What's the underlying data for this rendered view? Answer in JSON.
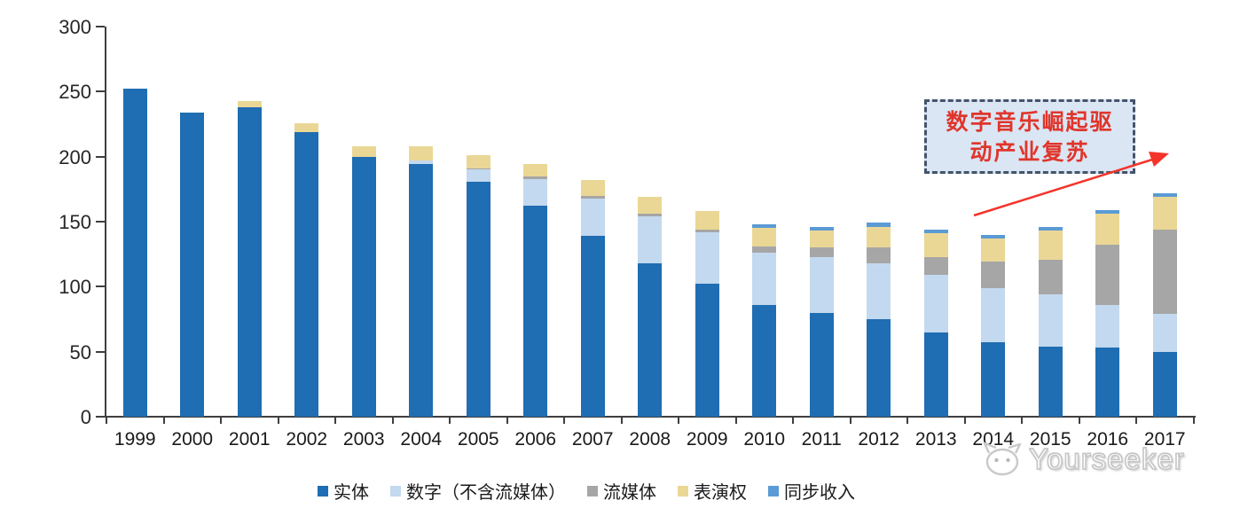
{
  "chart_data": {
    "type": "bar",
    "stacked": true,
    "title": "",
    "categories": [
      "1999",
      "2000",
      "2001",
      "2002",
      "2003",
      "2004",
      "2005",
      "2006",
      "2007",
      "2008",
      "2009",
      "2010",
      "2011",
      "2012",
      "2013",
      "2014",
      "2015",
      "2016",
      "2017"
    ],
    "series": [
      {
        "key": "physical",
        "name": "实体",
        "color": "#1F6DB2",
        "values": [
          252,
          234,
          238,
          219,
          200,
          194,
          181,
          162,
          139,
          118,
          102,
          86,
          80,
          75,
          65,
          57,
          54,
          53,
          50
        ]
      },
      {
        "key": "digital_excl_streaming",
        "name": "数字（不含流媒体）",
        "color": "#C3D9EF",
        "values": [
          0,
          0,
          0,
          0,
          0,
          3,
          9,
          21,
          29,
          36,
          40,
          40,
          43,
          43,
          44,
          42,
          40,
          33,
          29
        ]
      },
      {
        "key": "streaming",
        "name": "流媒体",
        "color": "#A6A6A6",
        "values": [
          0,
          0,
          0,
          0,
          0,
          0,
          1,
          2,
          2,
          2,
          2,
          5,
          7,
          12,
          14,
          20,
          27,
          46,
          65
        ]
      },
      {
        "key": "performance_rights",
        "name": "表演权",
        "color": "#EBD795",
        "values": [
          0,
          0,
          5,
          7,
          8,
          11,
          10,
          9,
          12,
          13,
          14,
          14,
          13,
          16,
          18,
          18,
          22,
          24,
          25
        ]
      },
      {
        "key": "sync_revenue",
        "name": "同步收入",
        "color": "#5B9BD5",
        "values": [
          0,
          0,
          0,
          0,
          0,
          0,
          0,
          0,
          0,
          0,
          0,
          3,
          3,
          3,
          3,
          3,
          3,
          3,
          3
        ]
      }
    ],
    "y_ticks": [
      0,
      50,
      100,
      150,
      200,
      250,
      300
    ],
    "ylim": [
      0,
      300
    ],
    "grid": false,
    "legend_position": "bottom"
  },
  "annotation": {
    "line1": "数字音乐崛起驱",
    "line2": "动产业复苏",
    "text_color": "#E0352B",
    "box_fill": "#DAE6F4",
    "box_border": "#44546A",
    "arrow_color": "#F4342A"
  },
  "watermark": {
    "text": "Yourseeker",
    "logo": "cat-logo"
  }
}
